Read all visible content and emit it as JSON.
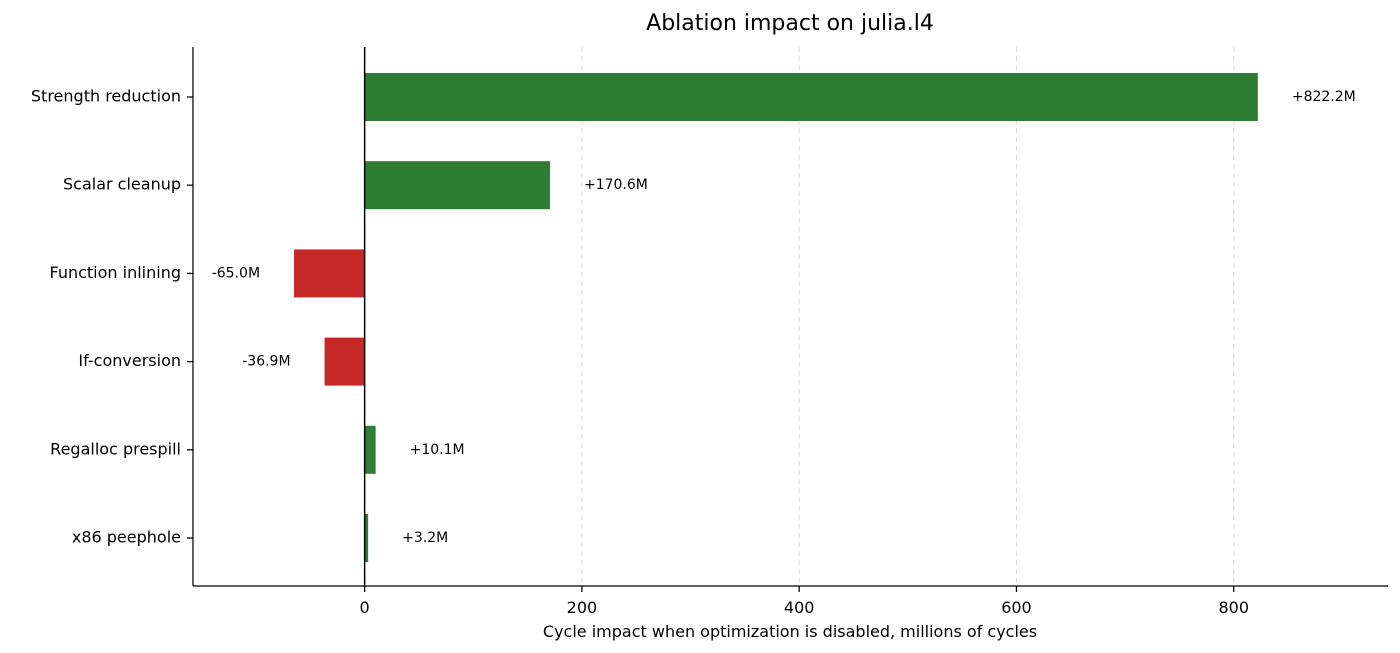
{
  "chart_data": {
    "type": "bar",
    "orientation": "horizontal",
    "title": "Ablation impact on julia.l4",
    "xlabel": "Cycle impact when optimization is disabled, millions of cycles",
    "ylabel": "",
    "xlim": [
      -158,
      942
    ],
    "xticks": [
      0,
      200,
      400,
      600,
      800
    ],
    "grid": "x-dashed",
    "categories": [
      "Strength reduction",
      "Scalar cleanup",
      "Function inlining",
      "If-conversion",
      "Regalloc prespill",
      "x86 peephole"
    ],
    "values": [
      822.2,
      170.6,
      -65.0,
      -36.9,
      10.1,
      3.2
    ],
    "data_labels": [
      "+822.2M",
      "+170.6M",
      "-65.0M",
      "-36.9M",
      "+10.1M",
      "+3.2M"
    ],
    "colors": {
      "positive": "#2e7d32",
      "negative": "#c62828"
    }
  }
}
